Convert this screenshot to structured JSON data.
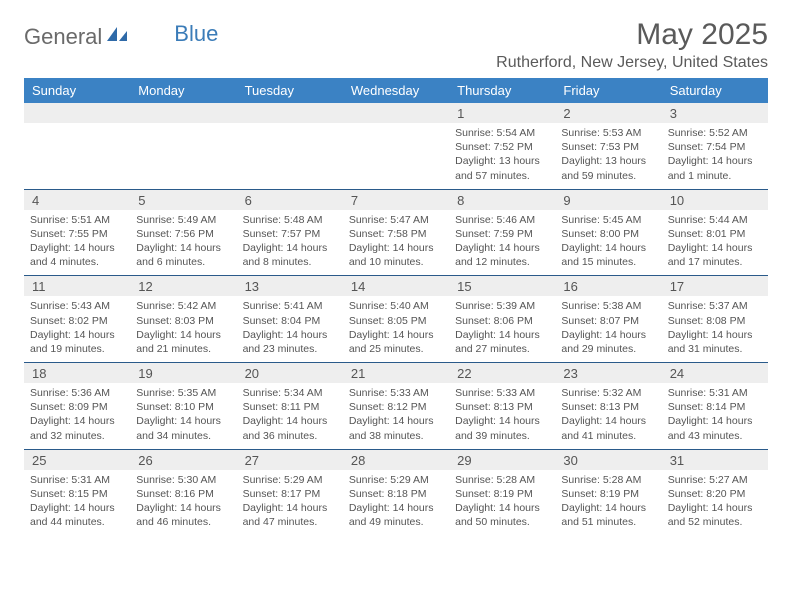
{
  "brand": {
    "part1": "General",
    "part2": "Blue"
  },
  "title": "May 2025",
  "location": "Rutherford, New Jersey, United States",
  "colors": {
    "header_bg": "#3b82c4",
    "header_text": "#ffffff",
    "rule": "#2a5a8a",
    "daynum_bg": "#eeeeee",
    "body_text": "#555555",
    "brand_blue": "#3b7cb8",
    "brand_gray": "#6a6a6a"
  },
  "day_names": [
    "Sunday",
    "Monday",
    "Tuesday",
    "Wednesday",
    "Thursday",
    "Friday",
    "Saturday"
  ],
  "weeks": [
    [
      {
        "n": "",
        "sr": "",
        "ss": "",
        "dl": ""
      },
      {
        "n": "",
        "sr": "",
        "ss": "",
        "dl": ""
      },
      {
        "n": "",
        "sr": "",
        "ss": "",
        "dl": ""
      },
      {
        "n": "",
        "sr": "",
        "ss": "",
        "dl": ""
      },
      {
        "n": "1",
        "sr": "Sunrise: 5:54 AM",
        "ss": "Sunset: 7:52 PM",
        "dl": "Daylight: 13 hours and 57 minutes."
      },
      {
        "n": "2",
        "sr": "Sunrise: 5:53 AM",
        "ss": "Sunset: 7:53 PM",
        "dl": "Daylight: 13 hours and 59 minutes."
      },
      {
        "n": "3",
        "sr": "Sunrise: 5:52 AM",
        "ss": "Sunset: 7:54 PM",
        "dl": "Daylight: 14 hours and 1 minute."
      }
    ],
    [
      {
        "n": "4",
        "sr": "Sunrise: 5:51 AM",
        "ss": "Sunset: 7:55 PM",
        "dl": "Daylight: 14 hours and 4 minutes."
      },
      {
        "n": "5",
        "sr": "Sunrise: 5:49 AM",
        "ss": "Sunset: 7:56 PM",
        "dl": "Daylight: 14 hours and 6 minutes."
      },
      {
        "n": "6",
        "sr": "Sunrise: 5:48 AM",
        "ss": "Sunset: 7:57 PM",
        "dl": "Daylight: 14 hours and 8 minutes."
      },
      {
        "n": "7",
        "sr": "Sunrise: 5:47 AM",
        "ss": "Sunset: 7:58 PM",
        "dl": "Daylight: 14 hours and 10 minutes."
      },
      {
        "n": "8",
        "sr": "Sunrise: 5:46 AM",
        "ss": "Sunset: 7:59 PM",
        "dl": "Daylight: 14 hours and 12 minutes."
      },
      {
        "n": "9",
        "sr": "Sunrise: 5:45 AM",
        "ss": "Sunset: 8:00 PM",
        "dl": "Daylight: 14 hours and 15 minutes."
      },
      {
        "n": "10",
        "sr": "Sunrise: 5:44 AM",
        "ss": "Sunset: 8:01 PM",
        "dl": "Daylight: 14 hours and 17 minutes."
      }
    ],
    [
      {
        "n": "11",
        "sr": "Sunrise: 5:43 AM",
        "ss": "Sunset: 8:02 PM",
        "dl": "Daylight: 14 hours and 19 minutes."
      },
      {
        "n": "12",
        "sr": "Sunrise: 5:42 AM",
        "ss": "Sunset: 8:03 PM",
        "dl": "Daylight: 14 hours and 21 minutes."
      },
      {
        "n": "13",
        "sr": "Sunrise: 5:41 AM",
        "ss": "Sunset: 8:04 PM",
        "dl": "Daylight: 14 hours and 23 minutes."
      },
      {
        "n": "14",
        "sr": "Sunrise: 5:40 AM",
        "ss": "Sunset: 8:05 PM",
        "dl": "Daylight: 14 hours and 25 minutes."
      },
      {
        "n": "15",
        "sr": "Sunrise: 5:39 AM",
        "ss": "Sunset: 8:06 PM",
        "dl": "Daylight: 14 hours and 27 minutes."
      },
      {
        "n": "16",
        "sr": "Sunrise: 5:38 AM",
        "ss": "Sunset: 8:07 PM",
        "dl": "Daylight: 14 hours and 29 minutes."
      },
      {
        "n": "17",
        "sr": "Sunrise: 5:37 AM",
        "ss": "Sunset: 8:08 PM",
        "dl": "Daylight: 14 hours and 31 minutes."
      }
    ],
    [
      {
        "n": "18",
        "sr": "Sunrise: 5:36 AM",
        "ss": "Sunset: 8:09 PM",
        "dl": "Daylight: 14 hours and 32 minutes."
      },
      {
        "n": "19",
        "sr": "Sunrise: 5:35 AM",
        "ss": "Sunset: 8:10 PM",
        "dl": "Daylight: 14 hours and 34 minutes."
      },
      {
        "n": "20",
        "sr": "Sunrise: 5:34 AM",
        "ss": "Sunset: 8:11 PM",
        "dl": "Daylight: 14 hours and 36 minutes."
      },
      {
        "n": "21",
        "sr": "Sunrise: 5:33 AM",
        "ss": "Sunset: 8:12 PM",
        "dl": "Daylight: 14 hours and 38 minutes."
      },
      {
        "n": "22",
        "sr": "Sunrise: 5:33 AM",
        "ss": "Sunset: 8:13 PM",
        "dl": "Daylight: 14 hours and 39 minutes."
      },
      {
        "n": "23",
        "sr": "Sunrise: 5:32 AM",
        "ss": "Sunset: 8:13 PM",
        "dl": "Daylight: 14 hours and 41 minutes."
      },
      {
        "n": "24",
        "sr": "Sunrise: 5:31 AM",
        "ss": "Sunset: 8:14 PM",
        "dl": "Daylight: 14 hours and 43 minutes."
      }
    ],
    [
      {
        "n": "25",
        "sr": "Sunrise: 5:31 AM",
        "ss": "Sunset: 8:15 PM",
        "dl": "Daylight: 14 hours and 44 minutes."
      },
      {
        "n": "26",
        "sr": "Sunrise: 5:30 AM",
        "ss": "Sunset: 8:16 PM",
        "dl": "Daylight: 14 hours and 46 minutes."
      },
      {
        "n": "27",
        "sr": "Sunrise: 5:29 AM",
        "ss": "Sunset: 8:17 PM",
        "dl": "Daylight: 14 hours and 47 minutes."
      },
      {
        "n": "28",
        "sr": "Sunrise: 5:29 AM",
        "ss": "Sunset: 8:18 PM",
        "dl": "Daylight: 14 hours and 49 minutes."
      },
      {
        "n": "29",
        "sr": "Sunrise: 5:28 AM",
        "ss": "Sunset: 8:19 PM",
        "dl": "Daylight: 14 hours and 50 minutes."
      },
      {
        "n": "30",
        "sr": "Sunrise: 5:28 AM",
        "ss": "Sunset: 8:19 PM",
        "dl": "Daylight: 14 hours and 51 minutes."
      },
      {
        "n": "31",
        "sr": "Sunrise: 5:27 AM",
        "ss": "Sunset: 8:20 PM",
        "dl": "Daylight: 14 hours and 52 minutes."
      }
    ]
  ]
}
